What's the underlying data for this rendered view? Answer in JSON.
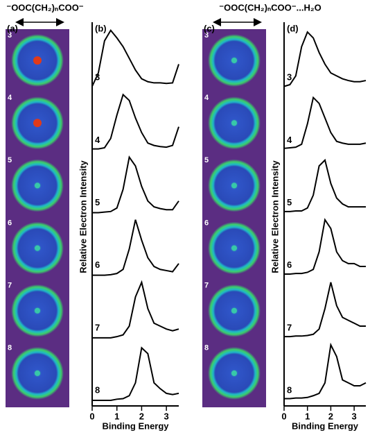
{
  "titles": [
    "⁻OOC(CH₂)ₙCOO⁻",
    "⁻OOC(CH₂)ₙCOO⁻...H₂O"
  ],
  "image_panels": [
    {
      "label": "(a)",
      "numbers": [
        "3",
        "4",
        "5",
        "6",
        "7",
        "8"
      ]
    },
    {
      "label": "(c)",
      "numbers": [
        "3",
        "4",
        "5",
        "6",
        "7",
        "8"
      ]
    }
  ],
  "chart_data": [
    {
      "type": "line",
      "panel_label": "(b)",
      "ylabel": "Relative Electron Intensity",
      "xlabel": "Binding Energy",
      "xlim": [
        0,
        3.5
      ],
      "xticks": [
        0,
        1,
        2,
        3
      ],
      "ylim": [
        0,
        1
      ],
      "x": [
        0,
        0.25,
        0.5,
        0.75,
        1,
        1.25,
        1.5,
        1.75,
        2,
        2.25,
        2.5,
        2.75,
        3,
        3.25,
        3.5
      ],
      "series": [
        {
          "name": "3",
          "color": "#000000",
          "values": [
            0.02,
            0.25,
            0.8,
            0.98,
            0.85,
            0.7,
            0.5,
            0.3,
            0.15,
            0.1,
            0.08,
            0.08,
            0.07,
            0.08,
            0.4
          ]
        },
        {
          "name": "4",
          "color": "#000000",
          "values": [
            0.02,
            0.02,
            0.04,
            0.2,
            0.6,
            0.95,
            0.85,
            0.55,
            0.3,
            0.12,
            0.08,
            0.06,
            0.05,
            0.08,
            0.4
          ]
        },
        {
          "name": "5",
          "color": "#000000",
          "values": [
            0,
            0,
            0.01,
            0.02,
            0.08,
            0.4,
            0.95,
            0.8,
            0.45,
            0.2,
            0.1,
            0.07,
            0.05,
            0.05,
            0.2
          ]
        },
        {
          "name": "6",
          "color": "#000000",
          "values": [
            0,
            0,
            0,
            0.01,
            0.03,
            0.1,
            0.45,
            0.95,
            0.6,
            0.3,
            0.15,
            0.1,
            0.08,
            0.06,
            0.2
          ]
        },
        {
          "name": "7",
          "color": "#000000",
          "values": [
            0,
            0,
            0,
            0,
            0.02,
            0.05,
            0.2,
            0.7,
            0.95,
            0.5,
            0.25,
            0.2,
            0.15,
            0.12,
            0.15
          ]
        },
        {
          "name": "8",
          "color": "#000000",
          "values": [
            0,
            0,
            0,
            0,
            0.02,
            0.03,
            0.08,
            0.3,
            0.9,
            0.8,
            0.3,
            0.2,
            0.12,
            0.1,
            0.12
          ]
        }
      ]
    },
    {
      "type": "line",
      "panel_label": "(d)",
      "ylabel": "Relative Electron Intensity",
      "xlabel": "Binding Energy",
      "xlim": [
        0,
        3.5
      ],
      "xticks": [
        0,
        1,
        2,
        3
      ],
      "ylim": [
        0,
        1
      ],
      "x": [
        0,
        0.25,
        0.5,
        0.75,
        1,
        1.25,
        1.5,
        1.75,
        2,
        2.25,
        2.5,
        2.75,
        3,
        3.25,
        3.5
      ],
      "series": [
        {
          "name": "3",
          "color": "#000000",
          "values": [
            0.02,
            0.05,
            0.2,
            0.7,
            0.95,
            0.85,
            0.6,
            0.4,
            0.25,
            0.2,
            0.15,
            0.12,
            0.1,
            0.1,
            0.12
          ]
        },
        {
          "name": "4",
          "color": "#000000",
          "values": [
            0.03,
            0.04,
            0.05,
            0.1,
            0.45,
            0.9,
            0.8,
            0.55,
            0.3,
            0.15,
            0.12,
            0.1,
            0.1,
            0.1,
            0.12
          ]
        },
        {
          "name": "5",
          "color": "#000000",
          "values": [
            0.02,
            0.02,
            0.03,
            0.03,
            0.08,
            0.3,
            0.8,
            0.9,
            0.5,
            0.25,
            0.15,
            0.1,
            0.1,
            0.1,
            0.1
          ]
        },
        {
          "name": "6",
          "color": "#000000",
          "values": [
            0.02,
            0.02,
            0.03,
            0.03,
            0.05,
            0.1,
            0.4,
            0.95,
            0.8,
            0.4,
            0.25,
            0.2,
            0.2,
            0.15,
            0.15
          ]
        },
        {
          "name": "7",
          "color": "#000000",
          "values": [
            0.02,
            0.02,
            0.03,
            0.03,
            0.04,
            0.06,
            0.15,
            0.5,
            0.95,
            0.55,
            0.35,
            0.3,
            0.25,
            0.2,
            0.2
          ]
        },
        {
          "name": "8",
          "color": "#000000",
          "values": [
            0.03,
            0.03,
            0.04,
            0.04,
            0.05,
            0.08,
            0.12,
            0.3,
            0.95,
            0.75,
            0.35,
            0.3,
            0.25,
            0.25,
            0.3
          ]
        }
      ]
    }
  ]
}
